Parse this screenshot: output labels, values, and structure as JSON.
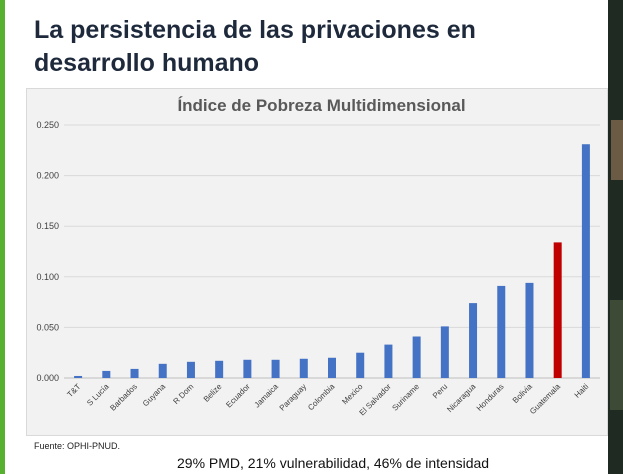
{
  "slide": {
    "title": "La persistencia de las privaciones en desarrollo humano",
    "source": "Fuente: OPHI-PNUD.",
    "note": "29% PMD, 21% vulnerabilidad, 46% de intensidad"
  },
  "colors": {
    "bar": "#4472c4",
    "highlight": "#c00000",
    "accent": "#57b02f"
  },
  "chart_data": {
    "type": "bar",
    "title": "Índice de Pobreza Multidimensional",
    "xlabel": "",
    "ylabel": "",
    "ylim": [
      0,
      0.25
    ],
    "yticks": [
      "0.000",
      "0.050",
      "0.100",
      "0.150",
      "0.200",
      "0.250"
    ],
    "grid": true,
    "categories": [
      "T&T",
      "S Lucía",
      "Barbados",
      "Guyana",
      "R Dom",
      "Belize",
      "Ecuador",
      "Jamaica",
      "Paraguay",
      "Colombia",
      "Mexico",
      "El Salvador",
      "Suriname",
      "Peru",
      "Nicaragua",
      "Honduras",
      "Bolivia",
      "Guatemala",
      "Haiti"
    ],
    "values": [
      0.002,
      0.007,
      0.009,
      0.014,
      0.016,
      0.017,
      0.018,
      0.018,
      0.019,
      0.02,
      0.025,
      0.033,
      0.041,
      0.051,
      0.074,
      0.091,
      0.094,
      0.134,
      0.231
    ],
    "highlight": "Guatemala"
  }
}
